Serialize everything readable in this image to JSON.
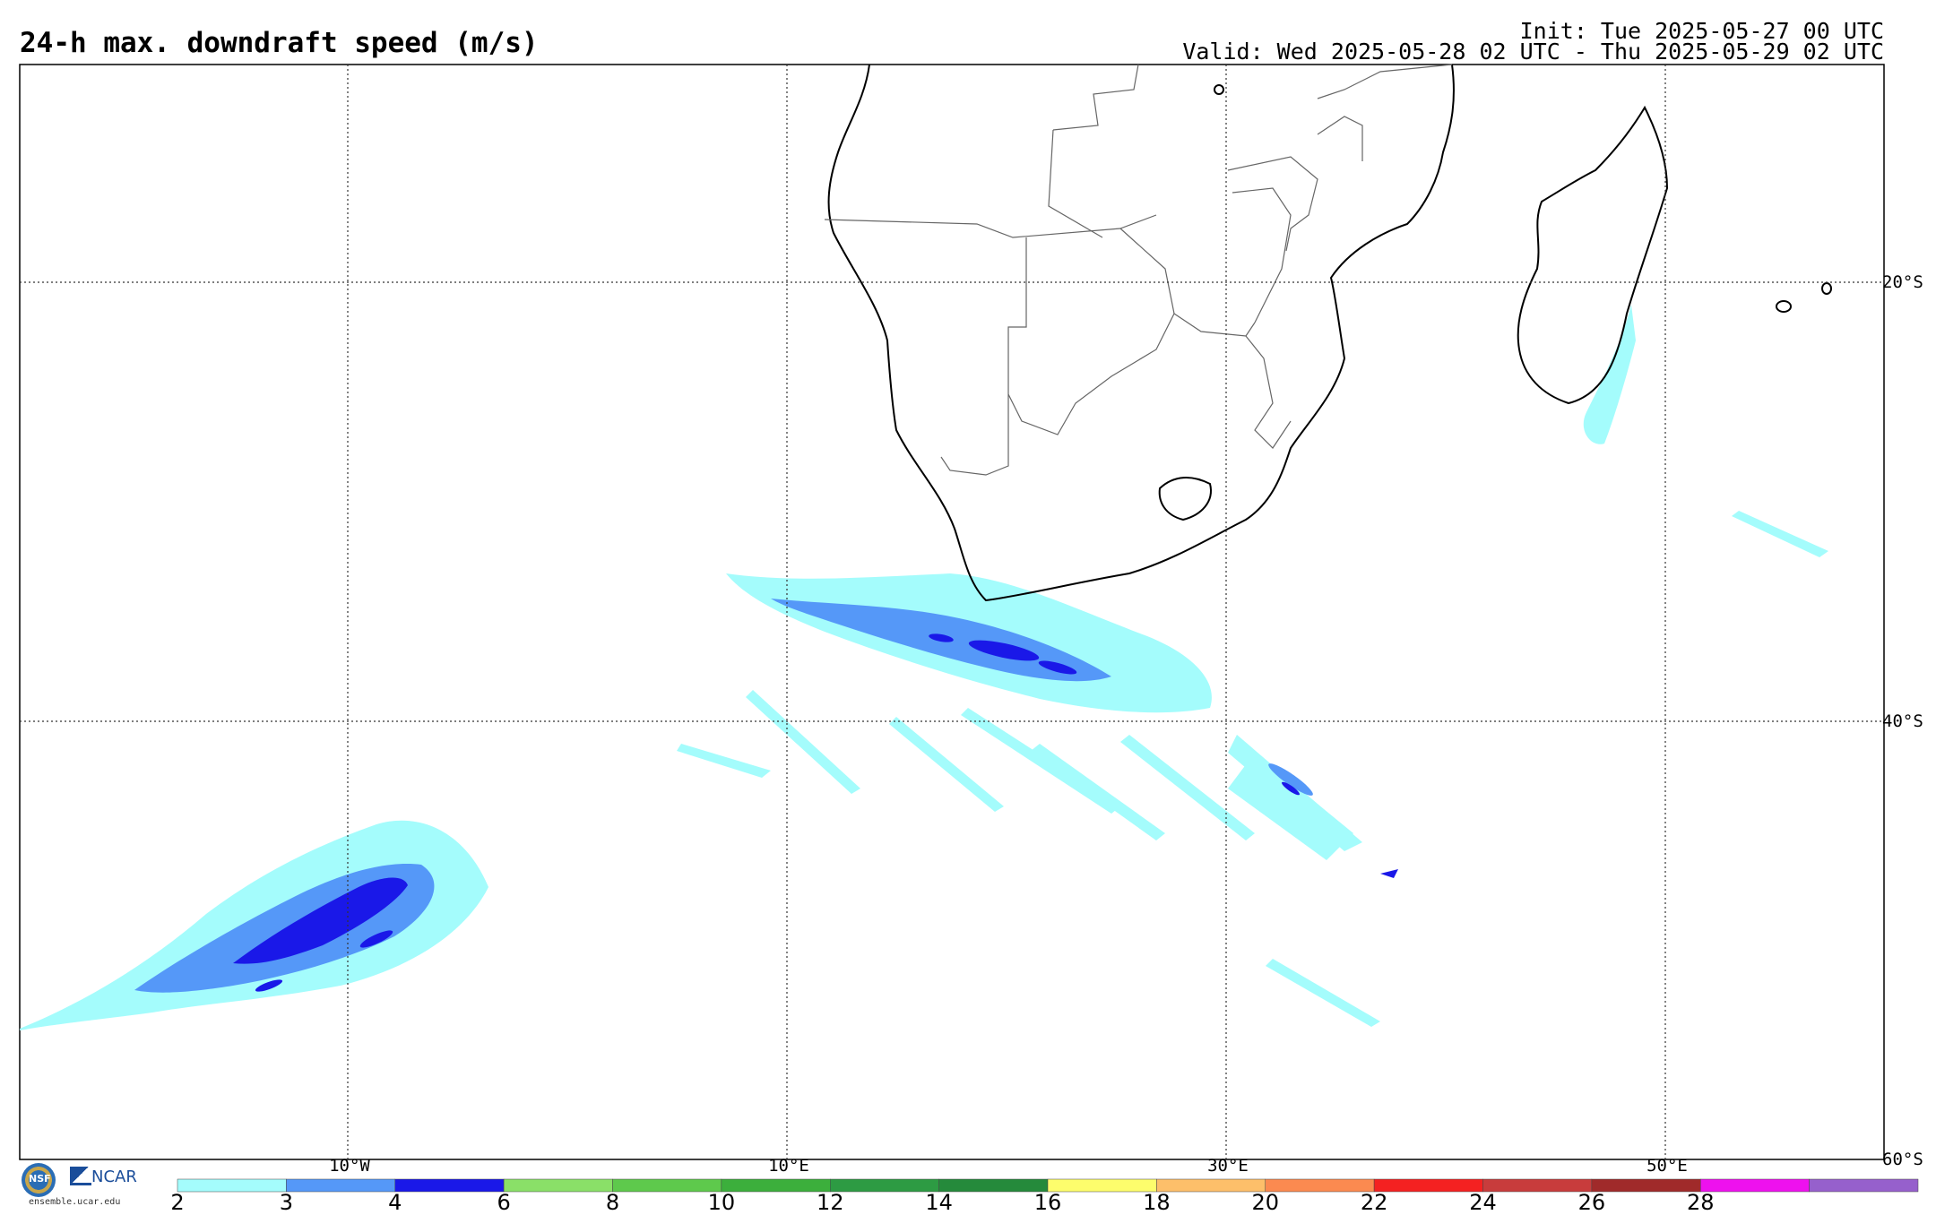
{
  "header": {
    "title": "24-h max. downdraft speed (m/s)",
    "init": "Init: Tue 2025-05-27 00 UTC",
    "valid": "Valid: Wed 2025-05-28 02 UTC - Thu 2025-05-29 02 UTC"
  },
  "map": {
    "longitude_labels": [
      "10°W",
      "10°E",
      "30°E",
      "50°E"
    ],
    "latitude_labels": [
      "20°S",
      "40°S",
      "60°S"
    ],
    "gridlines": "dotted"
  },
  "colorbar": {
    "ticks": [
      "2",
      "3",
      "4",
      "6",
      "8",
      "10",
      "12",
      "14",
      "16",
      "18",
      "20",
      "22",
      "24",
      "26",
      "28"
    ],
    "colors": [
      "#a4fcfc",
      "#5598f8",
      "#1a18e8",
      "#8ae068",
      "#5ec94c",
      "#3caf3c",
      "#2d9b43",
      "#258a3b",
      "#fdfd6c",
      "#fdbf6a",
      "#fb8a50",
      "#f42121",
      "#c83c3c",
      "#a02a2a",
      "#ee11ee",
      "#9660cc"
    ]
  },
  "logo": {
    "nsf": "NSF",
    "ncar": "NCAR",
    "url": "ensemble.ucar.edu"
  }
}
